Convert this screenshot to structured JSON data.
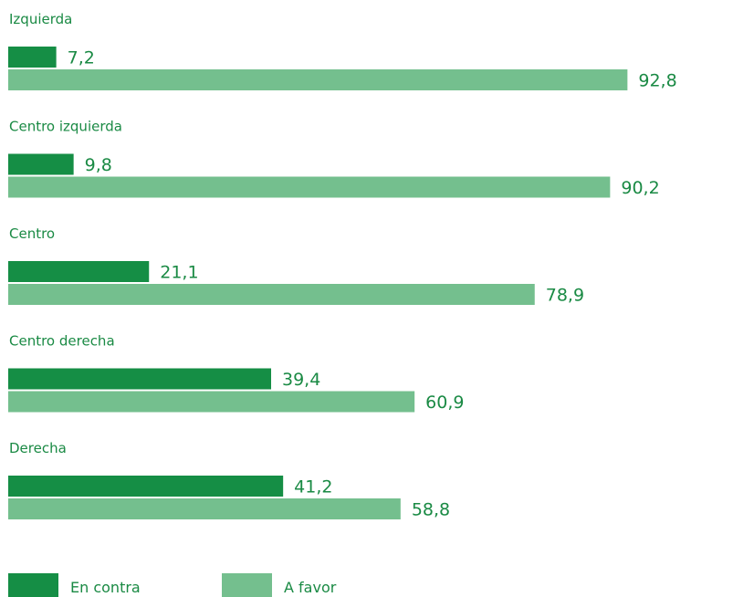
{
  "chart_data": {
    "type": "bar",
    "orientation": "horizontal",
    "categories": [
      "Izquierda",
      "Centro izquierda",
      "Centro",
      "Centro derecha",
      "Derecha"
    ],
    "series": [
      {
        "name": "En contra",
        "values": [
          7.2,
          9.8,
          21.1,
          39.4,
          41.2
        ],
        "value_labels": [
          "7,2",
          "9,8",
          "21,1",
          "39,4",
          "41,2"
        ],
        "color": "#158e45"
      },
      {
        "name": "A favor",
        "values": [
          92.8,
          90.2,
          78.9,
          60.9,
          58.8
        ],
        "value_labels": [
          "92,8",
          "90,2",
          "78,9",
          "60,9",
          "58,8"
        ],
        "color": "#74bf8e"
      }
    ],
    "xlim": [
      0,
      100
    ],
    "grid": false,
    "legend": "bottom-left"
  }
}
